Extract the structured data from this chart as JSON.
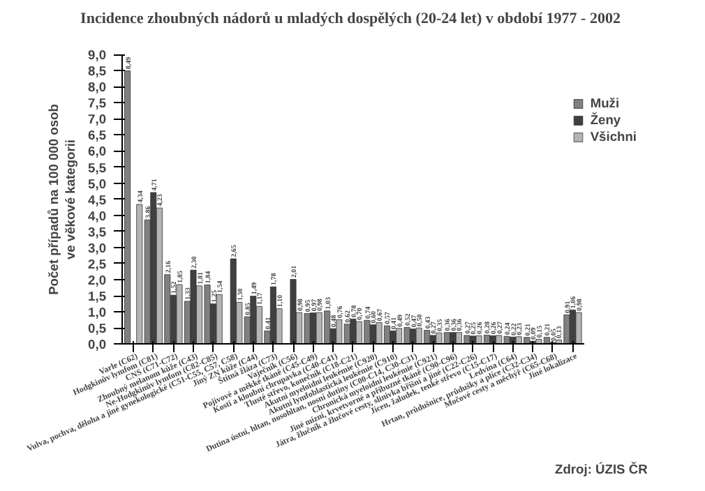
{
  "chart_data": {
    "type": "bar",
    "title": "Incidence zhoubných nádorů u mladých dospělých (20-24 let) v období 1977 - 2002",
    "ylabel": "Počet případů na 100 000 osob\nve věkové kategorii",
    "annotations": [
      "Zdroj: ÚZIS ČR"
    ],
    "categories": [
      "Varle (C62)",
      "Hodgkinův lymfom (C81)",
      "CNS (C71-C72)",
      "Zhoubný melanom kůže (C43)",
      "Ne-Hodgkinův lymfom (C82-C85)",
      "Vulva, pochva, děloha a jiné gynekologické (C51-C55, C57, C58)",
      "Jiný ZN kůže (C44)",
      "Štítná žláza (C73)",
      "Vaječník (C56)",
      "Pojivové a měkké tkáně (C45-C49)",
      "Kosti a kloubní chrupavka (C40-C41)",
      "Tlusté střevo, konečník (C18-C21)",
      "Akutní myeloidní leukémie (C920)",
      "Akutní lymfoblastická leukémie (C910)",
      "Dutina ústní, hltan, nosohltan, nosní dutiny (C00-C14, C30-C31)",
      "Chronická myeloidní leukémie (C921)",
      "Jiné mízní, krvetvorné a příbuzné tkáně (C90-C96)",
      "Játra, žlučník a žlučové cesty, slinivka břišní a jiné (C22-C26)",
      "Jícen, žaludek, tenké střevo (C15-C17)",
      "Ledvina (C64)",
      "Hrtan, průdušnice, průdušky a plíce (C32-C34)",
      "Močové cesty a měchýř (C65-C68)",
      "Jiné lokalizace"
    ],
    "series": [
      {
        "name": "Muži",
        "color": "#808080",
        "values": [
          8.49,
          3.86,
          2.16,
          1.33,
          1.84,
          null,
          0.85,
          0.41,
          null,
          0.95,
          1.03,
          0.62,
          0.74,
          0.57,
          0.52,
          0.43,
          0.36,
          0.27,
          0.28,
          0.24,
          0.21,
          0.21,
          0.91
        ],
        "value_labels": [
          "8,49",
          "3,86",
          "2,16",
          "1,33",
          "1,84",
          null,
          "0,85",
          "0,41",
          null,
          "0,95",
          "1,03",
          "0,62",
          "0,74",
          "0,57",
          "0,52",
          "0,43",
          "0,36",
          "0,27",
          "0,28",
          "0,24",
          "0,21",
          "0,21",
          "0,91"
        ]
      },
      {
        "name": "Ženy",
        "color": "#404040",
        "values": [
          null,
          4.71,
          1.52,
          2.3,
          1.25,
          2.65,
          1.49,
          1.78,
          2.01,
          0.97,
          0.48,
          0.78,
          0.6,
          0.41,
          0.47,
          0.27,
          0.36,
          0.25,
          0.26,
          0.22,
          0.09,
          0.05,
          1.06
        ],
        "value_labels": [
          null,
          "4,71",
          "1,52",
          "2,30",
          "1,25",
          "2,65",
          "1,49",
          "1,78",
          "2,01",
          "0,97",
          "0,48",
          "0,78",
          "0,60",
          "0,41",
          "0,47",
          "0,27",
          "0,36",
          "0,25",
          "0,26",
          "0,22",
          "0,09",
          "0,05",
          "1,06"
        ]
      },
      {
        "name": "Všichni",
        "color": "#b4b4b4",
        "values": [
          4.34,
          4.23,
          1.85,
          1.81,
          1.54,
          1.3,
          1.17,
          1.1,
          0.98,
          0.98,
          0.76,
          0.7,
          0.67,
          0.49,
          0.5,
          0.35,
          0.36,
          0.26,
          0.27,
          0.23,
          0.15,
          0.13,
          0.98
        ],
        "value_labels": [
          "4,34",
          "4,23",
          "1,85",
          "1,81",
          "1,54",
          "1,30",
          "1,17",
          "1,10",
          "0,98",
          "0,98",
          "0,76",
          "0,70",
          "0,67",
          "0,49",
          "0,50",
          "0,35",
          "0,36",
          "0,26",
          "0,27",
          "0,23",
          "0,15",
          "0,13",
          "0,98"
        ]
      }
    ],
    "ylim": [
      0,
      9
    ],
    "yticks": [
      {
        "value": 0,
        "label": "0,0"
      },
      {
        "value": 0.5,
        "label": "0,5"
      },
      {
        "value": 1,
        "label": "1,0"
      },
      {
        "value": 1.5,
        "label": "1,5"
      },
      {
        "value": 2,
        "label": "2,0"
      },
      {
        "value": 2.5,
        "label": "2,5"
      },
      {
        "value": 3,
        "label": "3,0"
      },
      {
        "value": 3.5,
        "label": "3,5"
      },
      {
        "value": 4,
        "label": "4,0"
      },
      {
        "value": 4.5,
        "label": "4,5"
      },
      {
        "value": 5,
        "label": "5,0"
      },
      {
        "value": 5.5,
        "label": "5,5"
      },
      {
        "value": 6,
        "label": "6,0"
      },
      {
        "value": 6.5,
        "label": "6,5"
      },
      {
        "value": 7,
        "label": "7,0"
      },
      {
        "value": 7.5,
        "label": "7,5"
      },
      {
        "value": 8,
        "label": "8,0"
      },
      {
        "value": 8.5,
        "label": "8,5"
      },
      {
        "value": 9,
        "label": "9,0"
      }
    ],
    "grid": false,
    "legend": "right"
  }
}
